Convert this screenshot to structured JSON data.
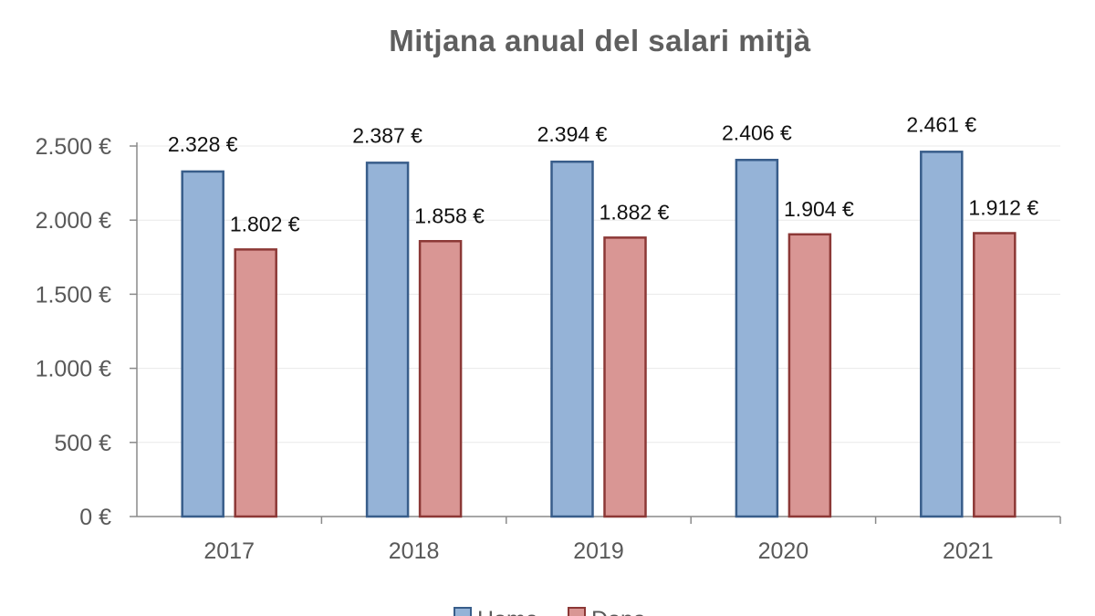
{
  "chart_data": {
    "type": "bar",
    "title": "Mitjana anual del salari mitjà",
    "xlabel": "",
    "ylabel": "",
    "categories": [
      "2017",
      "2018",
      "2019",
      "2020",
      "2021"
    ],
    "series": [
      {
        "name": "Home",
        "values": [
          2328,
          2387,
          2394,
          2406,
          2461
        ],
        "labels": [
          "2.328 €",
          "2.387 €",
          "2.394 €",
          "2.406 €",
          "2.461 €"
        ],
        "fill": "#95b3d7",
        "stroke": "#385d8a"
      },
      {
        "name": "Dona",
        "values": [
          1802,
          1858,
          1882,
          1904,
          1912
        ],
        "labels": [
          "1.802 €",
          "1.858 €",
          "1.882 €",
          "1.904 €",
          "1.912 €"
        ],
        "fill": "#d99694",
        "stroke": "#8c3836"
      }
    ],
    "ylim": [
      0,
      2500
    ],
    "yticks": [
      0,
      500,
      1000,
      1500,
      2000,
      2500
    ],
    "ytick_labels": [
      "0 €",
      "500 €",
      "1.000 €",
      "1.500 €",
      "2.000 €",
      "2.500 €"
    ],
    "grid": true,
    "legend_position": "bottom"
  }
}
